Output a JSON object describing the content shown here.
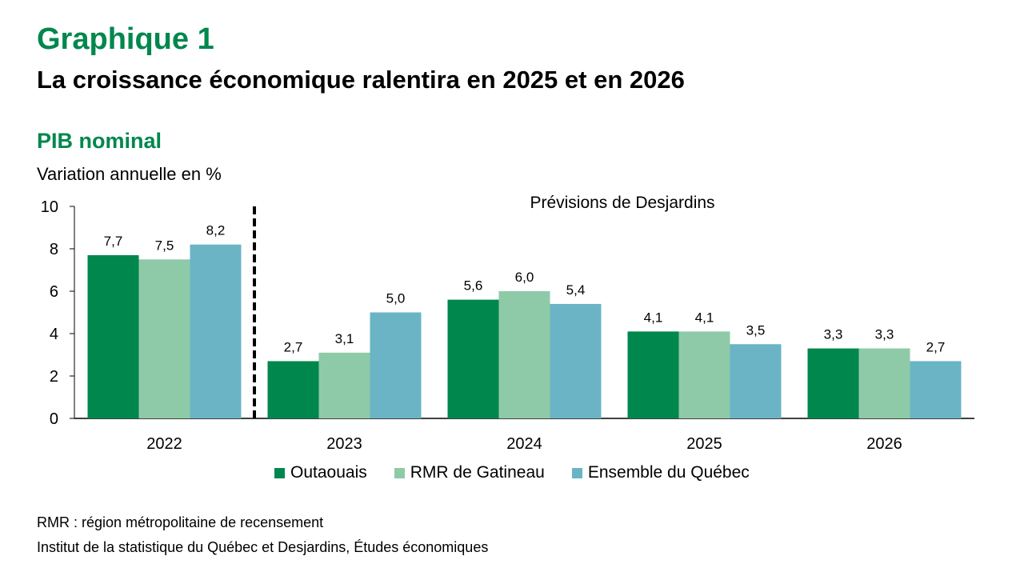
{
  "header": {
    "title": "Graphique 1",
    "subtitle": "La croissance économique ralentira en 2025 et en 2026",
    "section": "PIB nominal",
    "unit_label": "Variation annuelle en %"
  },
  "notes": {
    "definition": "RMR : région métropolitaine de recensement",
    "source": "Institut de la statistique du Québec et Desjardins, Études économiques"
  },
  "chart_data": {
    "type": "bar",
    "title": "PIB nominal",
    "ylabel": "Variation annuelle en %",
    "xlabel": "",
    "ylim": [
      0,
      10
    ],
    "yticks": [
      "0",
      "2",
      "4",
      "6",
      "8",
      "10"
    ],
    "ytick_values": [
      0,
      2,
      4,
      6,
      8,
      10
    ],
    "grid": false,
    "categories": [
      "2022",
      "2023",
      "2024",
      "2025",
      "2026"
    ],
    "series": [
      {
        "name": "Outaouais",
        "color": "#00874d",
        "values": [
          7.7,
          2.7,
          5.6,
          4.1,
          3.3
        ],
        "labels": [
          "7,7",
          "2,7",
          "5,6",
          "4,1",
          "3,3"
        ]
      },
      {
        "name": "RMR de Gatineau",
        "color": "#8fcaa8",
        "values": [
          7.5,
          3.1,
          6.0,
          4.1,
          3.3
        ],
        "labels": [
          "7,5",
          "3,1",
          "6,0",
          "4,1",
          "3,3"
        ]
      },
      {
        "name": "Ensemble du Québec",
        "color": "#6ab4c6",
        "values": [
          8.2,
          5.0,
          5.4,
          3.5,
          2.7
        ],
        "labels": [
          "8,2",
          "5,0",
          "5,4",
          "3,5",
          "2,7"
        ]
      }
    ],
    "annotation": "Prévisions de Desjardins",
    "forecast_divider_after": "2022",
    "legend_position": "bottom"
  }
}
